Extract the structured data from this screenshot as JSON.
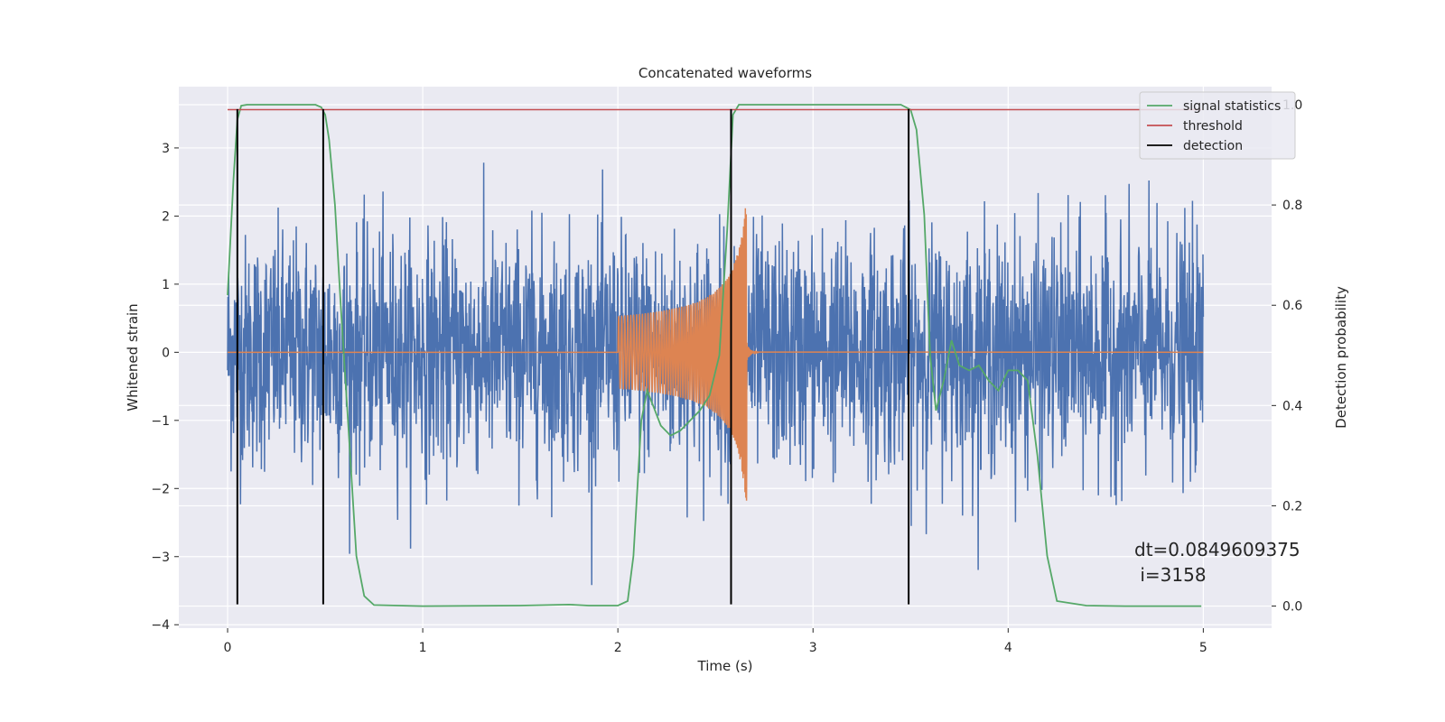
{
  "chart_data": {
    "type": "line",
    "title": "Concatenated waveforms",
    "xlabel": "Time (s)",
    "ylabel": "Whitened strain",
    "ylabel_right": "Detection probability",
    "xlim": [
      -0.25,
      5.35
    ],
    "ylim": [
      -4.05,
      3.9
    ],
    "ylim_right": [
      -0.044,
      1.036
    ],
    "x_ticks": [
      0,
      1,
      2,
      3,
      4,
      5
    ],
    "y_ticks": [
      -4,
      -3,
      -2,
      -1,
      0,
      1,
      2,
      3
    ],
    "y_ticks_right": [
      0.0,
      0.2,
      0.4,
      0.6,
      0.8,
      1.0
    ],
    "grid": true,
    "legend_position": "top-right",
    "colors": {
      "strain": "#4c72b0",
      "template": "#dd8452",
      "statistics": "#55a868",
      "threshold": "#c44e52",
      "detection": "#000000"
    },
    "series": [
      {
        "name": "signal statistics",
        "axis": "right",
        "x": [
          0.0,
          0.03,
          0.05,
          0.07,
          0.1,
          0.15,
          0.3,
          0.45,
          0.48,
          0.5,
          0.52,
          0.55,
          0.58,
          0.62,
          0.66,
          0.7,
          0.75,
          1.0,
          1.5,
          1.75,
          1.85,
          2.0,
          2.05,
          2.08,
          2.12,
          2.15,
          2.18,
          2.22,
          2.27,
          2.32,
          2.37,
          2.42,
          2.47,
          2.52,
          2.56,
          2.59,
          2.62,
          2.65,
          2.7,
          3.0,
          3.45,
          3.5,
          3.53,
          3.57,
          3.6,
          3.63,
          3.67,
          3.71,
          3.75,
          3.8,
          3.85,
          3.9,
          3.95,
          4.0,
          4.05,
          4.1,
          4.15,
          4.2,
          4.25,
          4.4,
          4.6,
          4.8,
          4.99
        ],
        "y": [
          0.62,
          0.85,
          0.97,
          0.998,
          1.0,
          1.0,
          1.0,
          1.0,
          0.995,
          0.98,
          0.93,
          0.8,
          0.6,
          0.35,
          0.1,
          0.02,
          0.002,
          0.0,
          0.001,
          0.003,
          0.001,
          0.001,
          0.01,
          0.1,
          0.37,
          0.43,
          0.4,
          0.36,
          0.34,
          0.35,
          0.37,
          0.39,
          0.42,
          0.5,
          0.75,
          0.98,
          1.0,
          1.0,
          1.0,
          1.0,
          1.0,
          0.99,
          0.95,
          0.78,
          0.5,
          0.39,
          0.45,
          0.53,
          0.48,
          0.47,
          0.48,
          0.45,
          0.43,
          0.47,
          0.47,
          0.45,
          0.3,
          0.1,
          0.01,
          0.001,
          0.0,
          0.0,
          0.0
        ]
      },
      {
        "name": "threshold",
        "axis": "right",
        "x": [
          0.0,
          4.99
        ],
        "y": [
          0.99,
          0.99
        ]
      },
      {
        "name": "detection",
        "axis": "left",
        "type": "vlines",
        "x": [
          0.05,
          0.49,
          2.58,
          3.49
        ],
        "ymin": -3.7,
        "ymax": 3.57
      }
    ],
    "annotation": [
      "dt=0.0849609375",
      " i=3158"
    ]
  }
}
